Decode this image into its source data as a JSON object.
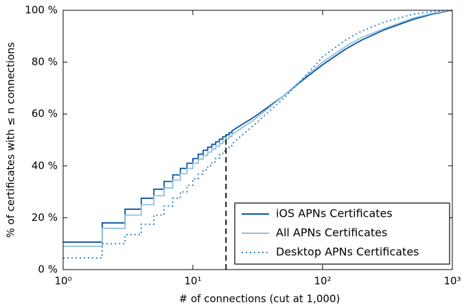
{
  "chart_data": {
    "type": "step-line",
    "xlabel": "# of connections (cut at 1,000)",
    "ylabel": "% of certificates with ≤ n connections",
    "xscale": "log",
    "xlim": [
      1,
      1000
    ],
    "xticks": [
      {
        "value": 1,
        "label": "10⁰"
      },
      {
        "value": 10,
        "label": "10¹"
      },
      {
        "value": 100,
        "label": "10²"
      },
      {
        "value": 1000,
        "label": "10³"
      }
    ],
    "ylim": [
      0,
      100
    ],
    "yticks": [
      {
        "value": 0,
        "label": "0 %"
      },
      {
        "value": 20,
        "label": "20 %"
      },
      {
        "value": 40,
        "label": "40 %"
      },
      {
        "value": 60,
        "label": "60 %"
      },
      {
        "value": 80,
        "label": "80 %"
      },
      {
        "value": 100,
        "label": "100 %"
      }
    ],
    "legend": "lower right",
    "x": [
      1,
      2,
      3,
      4,
      5,
      6,
      7,
      8,
      9,
      10,
      11,
      12,
      13,
      14,
      15,
      16,
      17,
      18,
      19,
      20,
      30,
      50,
      70,
      100,
      150,
      200,
      300,
      500,
      700,
      1000
    ],
    "series": [
      {
        "name": "iOS APNs Certificates",
        "color": "#08519c",
        "style": "solid",
        "values": [
          10.6,
          18,
          23.3,
          27.5,
          31,
          34,
          36.5,
          39,
          41,
          42.8,
          44.5,
          46,
          47.2,
          48.3,
          49.3,
          50.3,
          51.2,
          52,
          52.8,
          53.5,
          59,
          67,
          73,
          79,
          85,
          88.5,
          92.5,
          96.5,
          98.5,
          100
        ]
      },
      {
        "name": "All APNs Certificates",
        "color": "#8fbfe0",
        "style": "solid",
        "values": [
          9,
          15.9,
          21,
          25,
          28.5,
          31.5,
          34.5,
          37,
          39,
          41,
          42.6,
          44,
          45.3,
          46.5,
          47.5,
          48.6,
          49.6,
          50.5,
          51.3,
          52,
          58,
          67,
          73.5,
          80,
          86,
          89.5,
          93,
          97,
          98.8,
          100
        ]
      },
      {
        "name": "Desktop APNs Certificates",
        "color": "#3182bd",
        "style": "dotted",
        "values": [
          4.5,
          10,
          13.5,
          17.5,
          21,
          24.5,
          27.5,
          30,
          32.5,
          35,
          36.8,
          38.5,
          40,
          41.5,
          43,
          44.3,
          45.7,
          47,
          47.8,
          48.5,
          56,
          66,
          73.5,
          82,
          88.5,
          92,
          95.5,
          98.5,
          99.5,
          100
        ]
      }
    ],
    "reference_line": {
      "x": 18,
      "y": 52
    }
  }
}
